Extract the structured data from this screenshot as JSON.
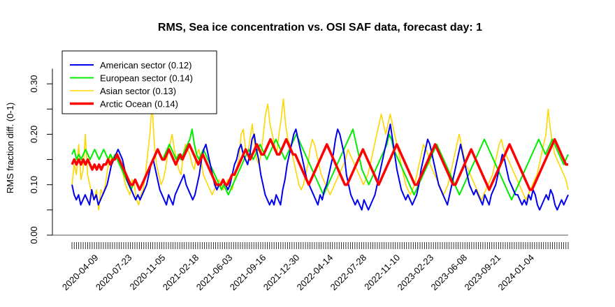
{
  "chart_data": {
    "type": "line",
    "title": "RMS, Sea ice concentration vs. OSI SAF data, forecast day: 1",
    "xlabel": "",
    "ylabel": "RMS fraction diff. (0-1)",
    "ylim": [
      0.0,
      0.35
    ],
    "y_ticks": [
      "0.00",
      "0.10",
      "0.20",
      "0.30"
    ],
    "x_tick_labels": [
      "2020-04-09",
      "2020-07-23",
      "2020-11-05",
      "2021-02-18",
      "2021-06-03",
      "2021-09-16",
      "2021-12-30",
      "2022-04-14",
      "2022-07-28",
      "2022-11-10",
      "2023-02-23",
      "2023-06-08",
      "2023-09-21",
      "2024-01-04"
    ],
    "x_range": [
      "2020-01-16",
      "2024-04-18"
    ],
    "grid": false,
    "legend_position": "top-left",
    "reference_line": 0.0,
    "series": [
      {
        "name": "American sector (0.12)",
        "color": "#0000ee",
        "values": [
          0.1,
          0.08,
          0.07,
          0.08,
          0.06,
          0.07,
          0.08,
          0.07,
          0.06,
          0.09,
          0.07,
          0.08,
          0.06,
          0.07,
          0.08,
          0.09,
          0.1,
          0.12,
          0.14,
          0.15,
          0.16,
          0.17,
          0.16,
          0.15,
          0.13,
          0.11,
          0.1,
          0.09,
          0.08,
          0.07,
          0.08,
          0.07,
          0.08,
          0.09,
          0.1,
          0.12,
          0.14,
          0.15,
          0.13,
          0.11,
          0.09,
          0.08,
          0.07,
          0.06,
          0.08,
          0.07,
          0.06,
          0.08,
          0.09,
          0.1,
          0.11,
          0.12,
          0.1,
          0.09,
          0.08,
          0.07,
          0.08,
          0.1,
          0.12,
          0.15,
          0.17,
          0.18,
          0.16,
          0.14,
          0.12,
          0.1,
          0.09,
          0.1,
          0.1,
          0.11,
          0.1,
          0.09,
          0.1,
          0.12,
          0.14,
          0.15,
          0.17,
          0.18,
          0.16,
          0.15,
          0.14,
          0.16,
          0.19,
          0.2,
          0.17,
          0.15,
          0.12,
          0.1,
          0.08,
          0.07,
          0.06,
          0.07,
          0.06,
          0.08,
          0.07,
          0.06,
          0.09,
          0.11,
          0.14,
          0.16,
          0.18,
          0.2,
          0.21,
          0.19,
          0.17,
          0.15,
          0.13,
          0.11,
          0.1,
          0.09,
          0.08,
          0.07,
          0.06,
          0.08,
          0.07,
          0.09,
          0.1,
          0.12,
          0.14,
          0.16,
          0.19,
          0.21,
          0.2,
          0.18,
          0.16,
          0.12,
          0.1,
          0.08,
          0.07,
          0.06,
          0.07,
          0.06,
          0.05,
          0.07,
          0.06,
          0.05,
          0.06,
          0.07,
          0.08,
          0.1,
          0.12,
          0.14,
          0.16,
          0.18,
          0.2,
          0.22,
          0.19,
          0.16,
          0.13,
          0.11,
          0.09,
          0.08,
          0.07,
          0.08,
          0.07,
          0.06,
          0.07,
          0.08,
          0.1,
          0.13,
          0.15,
          0.17,
          0.19,
          0.18,
          0.16,
          0.14,
          0.12,
          0.1,
          0.09,
          0.08,
          0.07,
          0.06,
          0.08,
          0.1,
          0.12,
          0.14,
          0.16,
          0.18,
          0.16,
          0.14,
          0.12,
          0.1,
          0.09,
          0.08,
          0.09,
          0.08,
          0.07,
          0.06,
          0.08,
          0.07,
          0.06,
          0.08,
          0.09,
          0.1,
          0.12,
          0.14,
          0.16,
          0.15,
          0.13,
          0.11,
          0.1,
          0.09,
          0.08,
          0.08,
          0.07,
          0.06,
          0.07,
          0.06,
          0.08,
          0.07,
          0.09,
          0.08,
          0.06,
          0.05,
          0.06,
          0.07,
          0.08,
          0.07,
          0.09,
          0.08,
          0.06,
          0.05,
          0.06,
          0.07,
          0.06,
          0.07,
          0.08
        ]
      },
      {
        "name": "European sector (0.14)",
        "color": "#00ee00",
        "values": [
          0.16,
          0.17,
          0.15,
          0.16,
          0.15,
          0.16,
          0.17,
          0.16,
          0.15,
          0.16,
          0.17,
          0.16,
          0.15,
          0.16,
          0.17,
          0.16,
          0.15,
          0.16,
          0.15,
          0.16,
          0.15,
          0.14,
          0.13,
          0.12,
          0.11,
          0.1,
          0.09,
          0.1,
          0.11,
          0.1,
          0.09,
          0.1,
          0.11,
          0.12,
          0.13,
          0.14,
          0.15,
          0.16,
          0.17,
          0.16,
          0.15,
          0.16,
          0.17,
          0.18,
          0.17,
          0.16,
          0.15,
          0.16,
          0.15,
          0.16,
          0.17,
          0.18,
          0.19,
          0.21,
          0.18,
          0.16,
          0.15,
          0.16,
          0.17,
          0.16,
          0.15,
          0.14,
          0.13,
          0.12,
          0.11,
          0.1,
          0.09,
          0.1,
          0.09,
          0.08,
          0.09,
          0.1,
          0.11,
          0.12,
          0.13,
          0.14,
          0.15,
          0.16,
          0.17,
          0.16,
          0.15,
          0.16,
          0.17,
          0.18,
          0.17,
          0.16,
          0.15,
          0.16,
          0.17,
          0.18,
          0.19,
          0.18,
          0.17,
          0.16,
          0.15,
          0.16,
          0.17,
          0.18,
          0.19,
          0.2,
          0.19,
          0.18,
          0.17,
          0.16,
          0.15,
          0.14,
          0.13,
          0.12,
          0.11,
          0.1,
          0.09,
          0.08,
          0.09,
          0.1,
          0.11,
          0.12,
          0.13,
          0.14,
          0.15,
          0.16,
          0.17,
          0.18,
          0.19,
          0.2,
          0.21,
          0.19,
          0.17,
          0.15,
          0.13,
          0.12,
          0.11,
          0.1,
          0.11,
          0.12,
          0.13,
          0.14,
          0.15,
          0.16,
          0.17,
          0.18,
          0.2,
          0.19,
          0.17,
          0.16,
          0.15,
          0.14,
          0.13,
          0.12,
          0.11,
          0.1,
          0.09,
          0.08,
          0.09,
          0.1,
          0.11,
          0.12,
          0.13,
          0.14,
          0.15,
          0.16,
          0.17,
          0.18,
          0.17,
          0.16,
          0.15,
          0.14,
          0.13,
          0.12,
          0.11,
          0.1,
          0.09,
          0.08,
          0.09,
          0.1,
          0.11,
          0.12,
          0.13,
          0.14,
          0.15,
          0.16,
          0.17,
          0.18,
          0.19,
          0.18,
          0.17,
          0.16,
          0.15,
          0.14,
          0.13,
          0.12,
          0.11,
          0.1,
          0.09,
          0.08,
          0.07,
          0.08,
          0.09,
          0.1,
          0.11,
          0.12,
          0.13,
          0.14,
          0.15,
          0.16,
          0.17,
          0.18,
          0.19,
          0.18,
          0.17,
          0.16,
          0.17,
          0.18,
          0.19,
          0.18,
          0.17,
          0.16,
          0.15,
          0.14,
          0.15,
          0.16
        ]
      },
      {
        "name": "Asian sector (0.13)",
        "color": "#ffd700",
        "values": [
          0.1,
          0.14,
          0.12,
          0.18,
          0.11,
          0.13,
          0.2,
          0.12,
          0.1,
          0.08,
          0.07,
          0.09,
          0.05,
          0.09,
          0.08,
          0.1,
          0.13,
          0.16,
          0.14,
          0.15,
          0.16,
          0.15,
          0.14,
          0.12,
          0.1,
          0.09,
          0.08,
          0.11,
          0.1,
          0.07,
          0.06,
          0.08,
          0.09,
          0.12,
          0.16,
          0.2,
          0.26,
          0.18,
          0.14,
          0.12,
          0.1,
          0.11,
          0.13,
          0.16,
          0.18,
          0.2,
          0.17,
          0.15,
          0.13,
          0.12,
          0.16,
          0.18,
          0.17,
          0.16,
          0.14,
          0.13,
          0.16,
          0.17,
          0.15,
          0.12,
          0.11,
          0.1,
          0.09,
          0.08,
          0.09,
          0.1,
          0.11,
          0.1,
          0.09,
          0.1,
          0.11,
          0.1,
          0.09,
          0.11,
          0.13,
          0.15,
          0.2,
          0.21,
          0.17,
          0.16,
          0.19,
          0.22,
          0.18,
          0.15,
          0.14,
          0.16,
          0.2,
          0.24,
          0.26,
          0.22,
          0.2,
          0.18,
          0.16,
          0.2,
          0.23,
          0.27,
          0.22,
          0.19,
          0.18,
          0.16,
          0.14,
          0.12,
          0.1,
          0.09,
          0.1,
          0.12,
          0.14,
          0.17,
          0.19,
          0.18,
          0.16,
          0.14,
          0.12,
          0.11,
          0.1,
          0.09,
          0.08,
          0.09,
          0.1,
          0.11,
          0.12,
          0.13,
          0.14,
          0.15,
          0.17,
          0.16,
          0.15,
          0.14,
          0.13,
          0.12,
          0.11,
          0.1,
          0.11,
          0.12,
          0.14,
          0.16,
          0.18,
          0.2,
          0.22,
          0.24,
          0.22,
          0.2,
          0.22,
          0.24,
          0.22,
          0.2,
          0.18,
          0.16,
          0.14,
          0.12,
          0.1,
          0.09,
          0.08,
          0.09,
          0.1,
          0.12,
          0.14,
          0.16,
          0.18,
          0.17,
          0.16,
          0.14,
          0.13,
          0.12,
          0.11,
          0.1,
          0.09,
          0.08,
          0.09,
          0.1,
          0.12,
          0.14,
          0.16,
          0.18,
          0.2,
          0.18,
          0.16,
          0.14,
          0.13,
          0.12,
          0.11,
          0.1,
          0.09,
          0.08,
          0.07,
          0.08,
          0.09,
          0.1,
          0.11,
          0.12,
          0.14,
          0.16,
          0.18,
          0.19,
          0.17,
          0.16,
          0.15,
          0.14,
          0.13,
          0.12,
          0.11,
          0.1,
          0.09,
          0.08,
          0.07,
          0.08,
          0.09,
          0.1,
          0.11,
          0.12,
          0.14,
          0.16,
          0.18,
          0.2,
          0.25,
          0.21,
          0.18,
          0.16,
          0.15,
          0.14,
          0.13,
          0.12,
          0.11,
          0.09
        ]
      },
      {
        "name": "Arctic Ocean (0.14)",
        "color": "#ff0000",
        "values": [
          0.14,
          0.15,
          0.14,
          0.15,
          0.14,
          0.15,
          0.14,
          0.15,
          0.14,
          0.13,
          0.14,
          0.13,
          0.14,
          0.13,
          0.14,
          0.14,
          0.15,
          0.14,
          0.15,
          0.15,
          0.16,
          0.15,
          0.14,
          0.13,
          0.12,
          0.11,
          0.1,
          0.1,
          0.11,
          0.1,
          0.09,
          0.1,
          0.11,
          0.12,
          0.13,
          0.14,
          0.15,
          0.16,
          0.17,
          0.16,
          0.15,
          0.15,
          0.16,
          0.17,
          0.16,
          0.15,
          0.14,
          0.15,
          0.16,
          0.15,
          0.16,
          0.17,
          0.18,
          0.17,
          0.16,
          0.15,
          0.14,
          0.15,
          0.16,
          0.15,
          0.14,
          0.13,
          0.12,
          0.11,
          0.1,
          0.1,
          0.1,
          0.11,
          0.1,
          0.1,
          0.11,
          0.12,
          0.12,
          0.13,
          0.14,
          0.15,
          0.16,
          0.17,
          0.16,
          0.15,
          0.16,
          0.17,
          0.18,
          0.17,
          0.16,
          0.16,
          0.17,
          0.18,
          0.19,
          0.18,
          0.17,
          0.16,
          0.16,
          0.17,
          0.18,
          0.19,
          0.18,
          0.17,
          0.16,
          0.16,
          0.15,
          0.14,
          0.13,
          0.12,
          0.11,
          0.1,
          0.11,
          0.12,
          0.13,
          0.14,
          0.15,
          0.16,
          0.17,
          0.18,
          0.17,
          0.16,
          0.15,
          0.14,
          0.13,
          0.12,
          0.11,
          0.1,
          0.1,
          0.11,
          0.12,
          0.13,
          0.14,
          0.15,
          0.16,
          0.17,
          0.16,
          0.15,
          0.14,
          0.13,
          0.12,
          0.11,
          0.1,
          0.11,
          0.12,
          0.13,
          0.14,
          0.15,
          0.16,
          0.17,
          0.18,
          0.17,
          0.16,
          0.15,
          0.14,
          0.13,
          0.12,
          0.11,
          0.1,
          0.1,
          0.11,
          0.12,
          0.13,
          0.14,
          0.15,
          0.16,
          0.17,
          0.18,
          0.17,
          0.16,
          0.15,
          0.14,
          0.13,
          0.12,
          0.11,
          0.1,
          0.1,
          0.11,
          0.12,
          0.13,
          0.14,
          0.15,
          0.16,
          0.17,
          0.16,
          0.15,
          0.14,
          0.13,
          0.12,
          0.11,
          0.1,
          0.09,
          0.1,
          0.11,
          0.12,
          0.13,
          0.14,
          0.15,
          0.16,
          0.17,
          0.18,
          0.17,
          0.16,
          0.15,
          0.14,
          0.13,
          0.12,
          0.11,
          0.1,
          0.09,
          0.09,
          0.1,
          0.11,
          0.12,
          0.13,
          0.14,
          0.15,
          0.16,
          0.17,
          0.18,
          0.19,
          0.18,
          0.17,
          0.16,
          0.15,
          0.14,
          0.14
        ]
      }
    ]
  }
}
